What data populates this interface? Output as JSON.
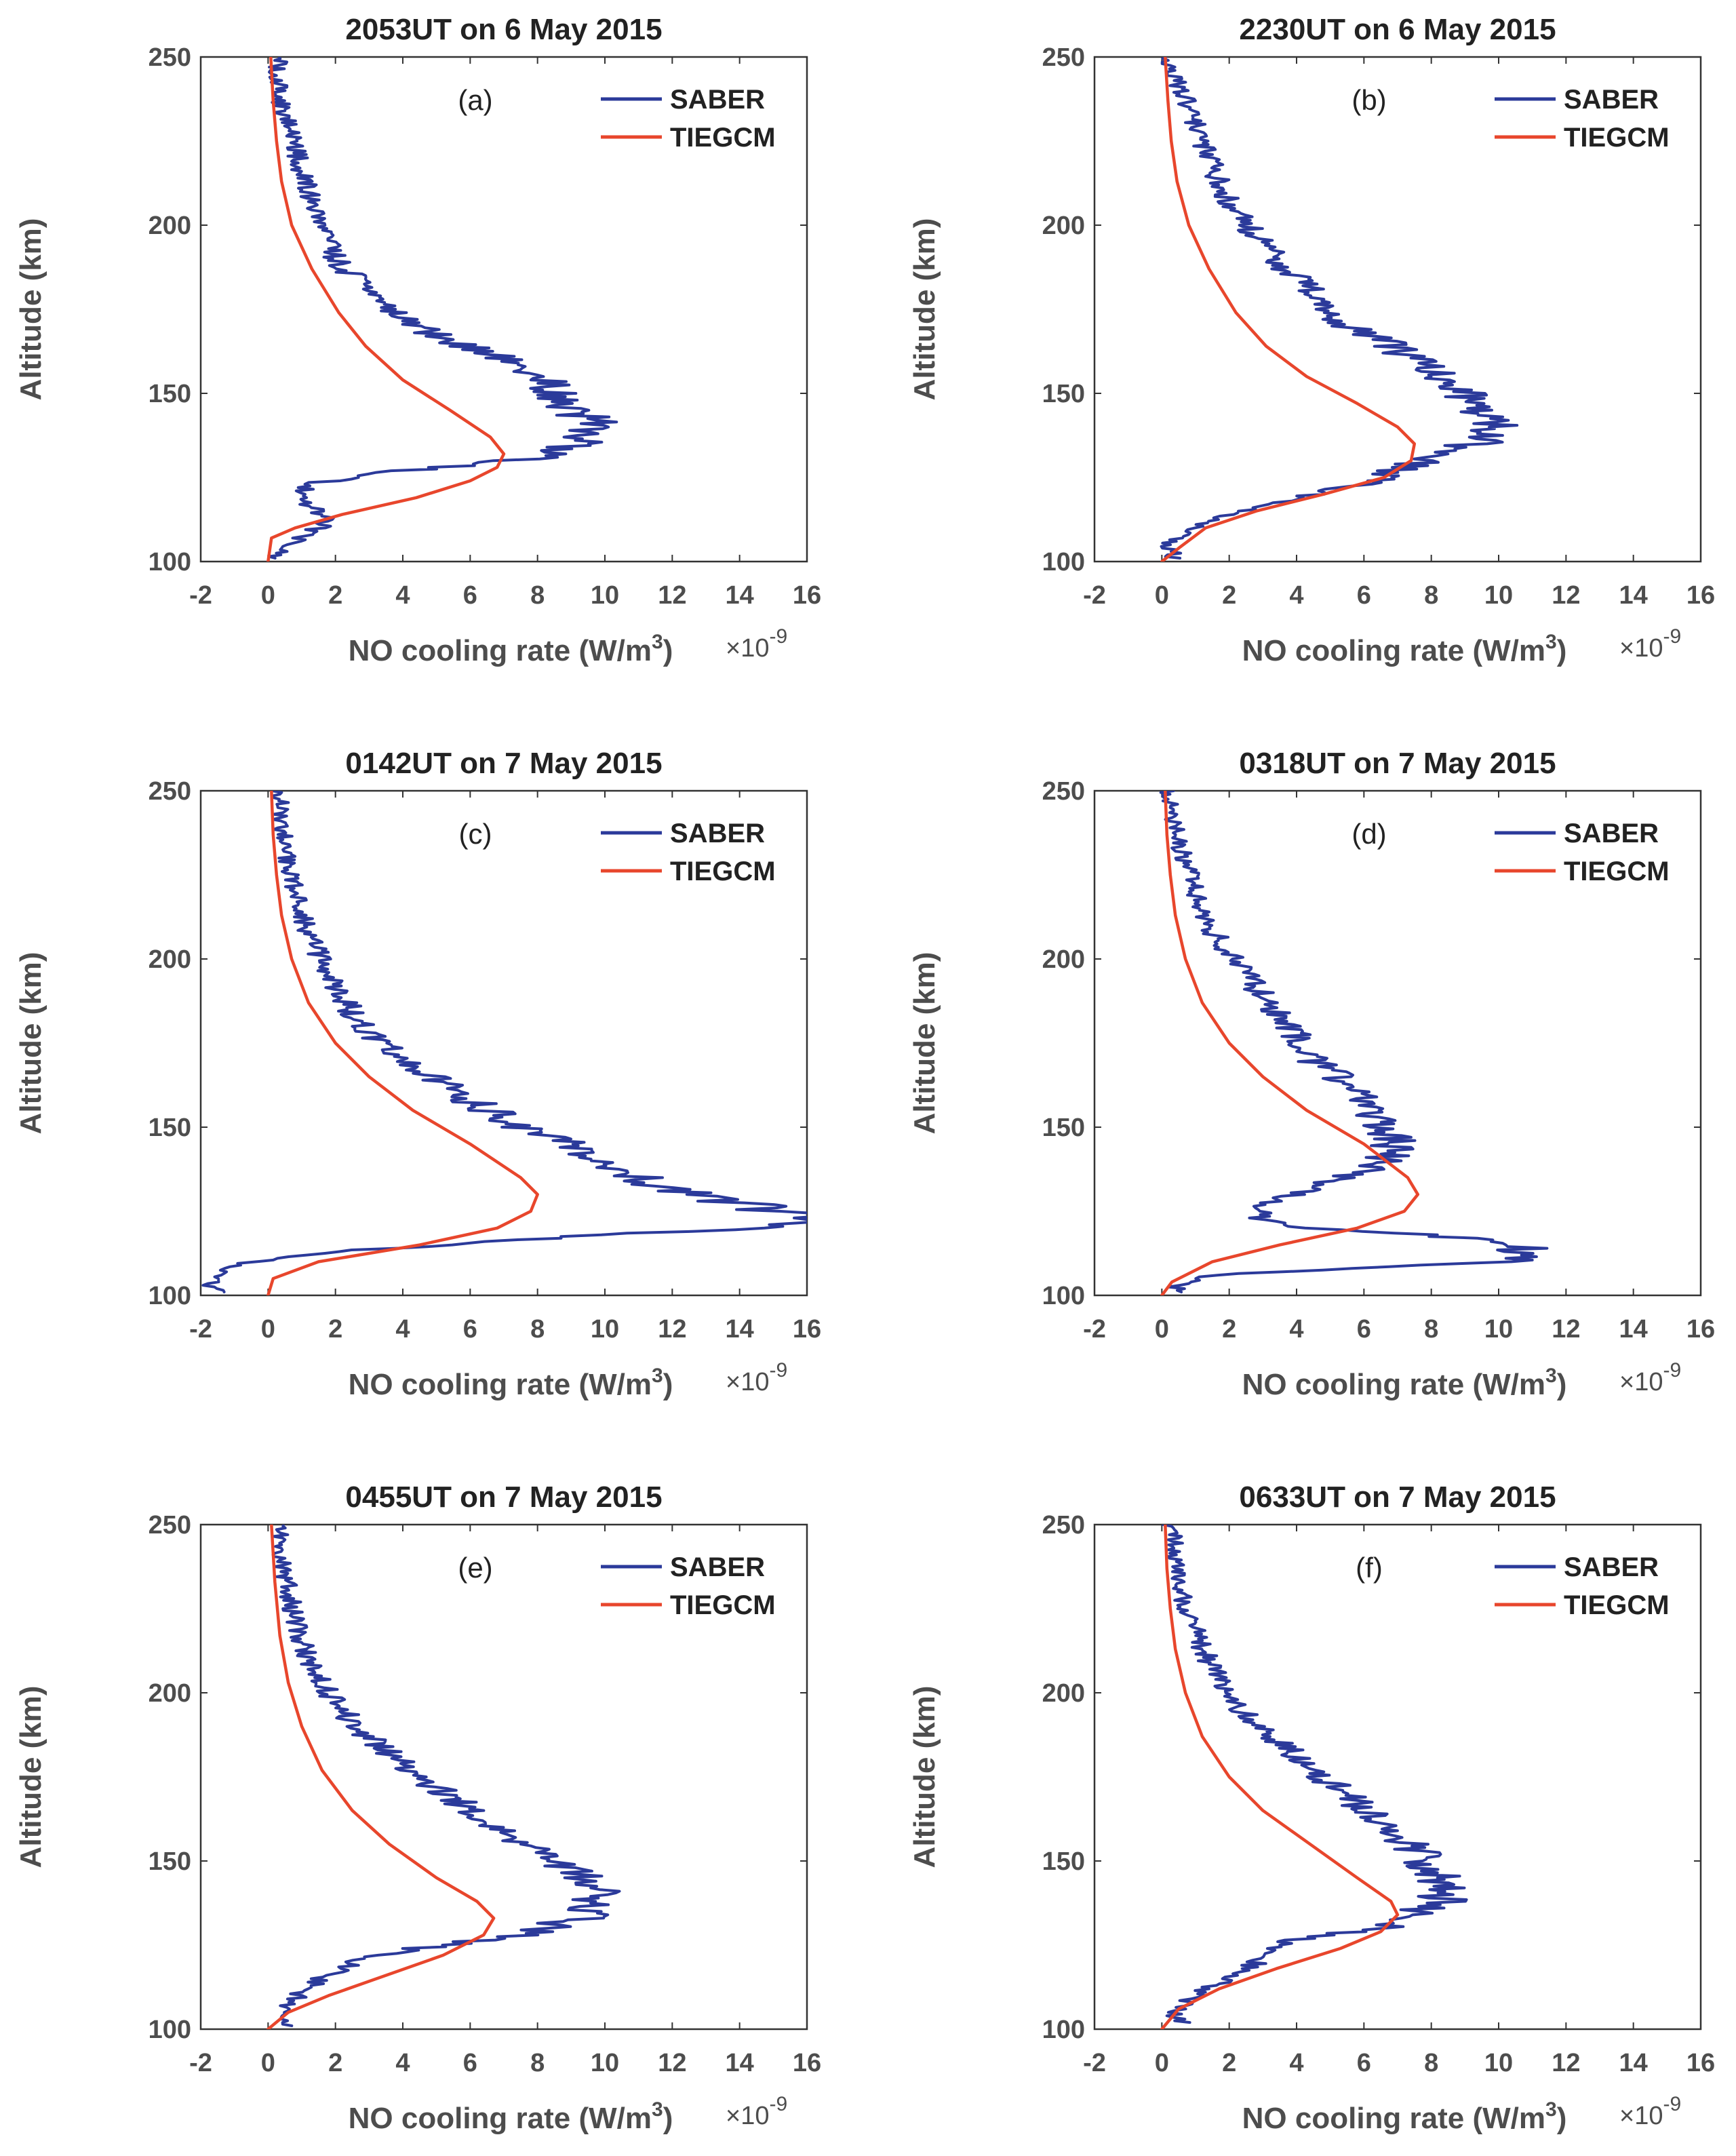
{
  "chart_data": [
    {
      "type": "line",
      "title": "2053UT on 6 May 2015",
      "panel_label": "(a)",
      "xlabel": "NO cooling rate (W/m",
      "xlabel_sup": "3",
      "xlabel_end": ")",
      "ylabel": "Altitude (km)",
      "x_multiplier_base": "×10",
      "x_multiplier_exp": "-9",
      "xlim": [
        -2,
        16
      ],
      "ylim": [
        100,
        250
      ],
      "xticks": [
        -2,
        0,
        2,
        4,
        6,
        8,
        10,
        12,
        14,
        16
      ],
      "yticks": [
        100,
        150,
        200,
        250
      ],
      "legend": [
        "SABER",
        "TIEGCM"
      ],
      "series": [
        {
          "name": "SABER",
          "color": "#2b3a9a",
          "x": [
            0.1,
            0.4,
            1.0,
            1.8,
            1.2,
            1.0,
            1.2,
            3.0,
            5.0,
            8.5,
            9.2,
            9.8,
            9.0,
            8.7,
            7.9,
            7.0,
            5.6,
            4.3,
            3.0,
            2.0,
            1.6,
            1.2,
            0.9,
            0.6,
            0.4,
            0.3,
            0.3
          ],
          "y": [
            101,
            103,
            107,
            112,
            117,
            120,
            123,
            126,
            128,
            131,
            135,
            140,
            145,
            150,
            155,
            160,
            165,
            170,
            180,
            190,
            200,
            210,
            220,
            230,
            235,
            240,
            250
          ]
        },
        {
          "name": "TIEGCM",
          "color": "#e8462c",
          "x": [
            0.0,
            0.1,
            0.8,
            2.2,
            4.4,
            6.0,
            6.8,
            7.0,
            6.6,
            5.4,
            4.0,
            2.9,
            2.1,
            1.3,
            0.7,
            0.4,
            0.25,
            0.15,
            0.08
          ],
          "y": [
            100,
            107,
            110,
            114,
            119,
            124,
            128,
            132,
            137,
            145,
            154,
            164,
            174,
            187,
            200,
            213,
            225,
            237,
            250
          ]
        }
      ]
    },
    {
      "type": "line",
      "title": "2230UT on 6 May 2015",
      "panel_label": "(b)",
      "xlabel": "NO cooling rate (W/m",
      "xlabel_sup": "3",
      "xlabel_end": ")",
      "ylabel": "Altitude (km)",
      "x_multiplier_base": "×10",
      "x_multiplier_exp": "-9",
      "xlim": [
        -2,
        16
      ],
      "ylim": [
        100,
        250
      ],
      "xticks": [
        -2,
        0,
        2,
        4,
        6,
        8,
        10,
        12,
        14,
        16
      ],
      "yticks": [
        100,
        150,
        200,
        250
      ],
      "legend": [
        "SABER",
        "TIEGCM"
      ],
      "series": [
        {
          "name": "SABER",
          "color": "#2b3a9a",
          "x": [
            0.4,
            0.2,
            0.8,
            2.0,
            3.5,
            5.0,
            6.5,
            7.8,
            9.3,
            9.8,
            9.5,
            8.9,
            8.2,
            7.6,
            6.6,
            5.5,
            4.4,
            3.4,
            2.5,
            1.8,
            1.4,
            1.0,
            0.6,
            0.3,
            0.2
          ],
          "y": [
            101,
            105,
            110,
            114,
            118,
            121,
            125,
            130,
            135,
            140,
            145,
            150,
            155,
            160,
            165,
            170,
            180,
            190,
            200,
            210,
            220,
            230,
            240,
            245,
            250
          ]
        },
        {
          "name": "TIEGCM",
          "color": "#e8462c",
          "x": [
            0.0,
            0.5,
            1.3,
            2.8,
            4.8,
            6.6,
            7.4,
            7.5,
            7.0,
            5.8,
            4.3,
            3.1,
            2.2,
            1.4,
            0.8,
            0.45,
            0.28,
            0.18,
            0.1
          ],
          "y": [
            100,
            104,
            110,
            115,
            120,
            125,
            130,
            135,
            140,
            147,
            155,
            164,
            174,
            187,
            200,
            213,
            225,
            237,
            250
          ]
        }
      ]
    },
    {
      "type": "line",
      "title": "0142UT on 7 May 2015",
      "panel_label": "(c)",
      "xlabel": "NO cooling rate (W/m",
      "xlabel_sup": "3",
      "xlabel_end": ")",
      "ylabel": "Altitude (km)",
      "x_multiplier_base": "×10",
      "x_multiplier_exp": "-9",
      "xlim": [
        -2,
        16
      ],
      "ylim": [
        100,
        250
      ],
      "xticks": [
        -2,
        0,
        2,
        4,
        6,
        8,
        10,
        12,
        14,
        16
      ],
      "yticks": [
        100,
        150,
        200,
        250
      ],
      "legend": [
        "SABER",
        "TIEGCM"
      ],
      "series": [
        {
          "name": "SABER",
          "color": "#2b3a9a",
          "x": [
            -1.5,
            -1.8,
            -0.5,
            2.0,
            8.0,
            12.0,
            15.5,
            16.0,
            14.5,
            12.0,
            10.5,
            9.0,
            7.5,
            6.0,
            4.8,
            3.7,
            2.8,
            2.1,
            1.6,
            1.1,
            0.8,
            0.6,
            0.4,
            0.3
          ],
          "y": [
            101,
            105,
            110,
            113,
            117,
            119,
            121,
            122,
            126,
            132,
            138,
            145,
            150,
            158,
            165,
            172,
            180,
            190,
            200,
            210,
            220,
            230,
            240,
            250
          ]
        },
        {
          "name": "TIEGCM",
          "color": "#e8462c",
          "x": [
            0.0,
            0.15,
            1.5,
            4.5,
            6.8,
            7.8,
            8.0,
            7.5,
            6.0,
            4.3,
            3.0,
            2.0,
            1.2,
            0.7,
            0.4,
            0.25,
            0.15,
            0.1
          ],
          "y": [
            100,
            105,
            110,
            115,
            120,
            125,
            130,
            135,
            145,
            155,
            165,
            175,
            187,
            200,
            213,
            225,
            237,
            250
          ]
        }
      ]
    },
    {
      "type": "line",
      "title": "0318UT on 7 May 2015",
      "panel_label": "(d)",
      "xlabel": "NO cooling rate (W/m",
      "xlabel_sup": "3",
      "xlabel_end": ")",
      "ylabel": "Altitude (km)",
      "x_multiplier_base": "×10",
      "x_multiplier_exp": "-9",
      "xlim": [
        -2,
        16
      ],
      "ylim": [
        100,
        250
      ],
      "xticks": [
        -2,
        0,
        2,
        4,
        6,
        8,
        10,
        12,
        14,
        16
      ],
      "yticks": [
        100,
        150,
        200,
        250
      ],
      "legend": [
        "SABER",
        "TIEGCM"
      ],
      "series": [
        {
          "name": "SABER",
          "color": "#2b3a9a",
          "x": [
            0.4,
            0.4,
            1.5,
            6.0,
            10.0,
            11.0,
            9.5,
            5.5,
            3.0,
            2.8,
            4.5,
            6.0,
            6.8,
            6.9,
            6.5,
            6.2,
            5.5,
            4.5,
            3.8,
            2.9,
            2.1,
            1.4,
            1.0,
            0.5,
            0.1
          ],
          "y": [
            101,
            103,
            106,
            108,
            110,
            113,
            117,
            119,
            122,
            127,
            132,
            137,
            142,
            147,
            150,
            155,
            163,
            170,
            180,
            190,
            200,
            210,
            220,
            235,
            250
          ]
        },
        {
          "name": "TIEGCM",
          "color": "#e8462c",
          "x": [
            0.0,
            0.3,
            1.5,
            3.5,
            5.8,
            7.2,
            7.6,
            7.3,
            6.0,
            4.3,
            3.0,
            2.0,
            1.2,
            0.7,
            0.4,
            0.25,
            0.15,
            0.1
          ],
          "y": [
            100,
            104,
            110,
            115,
            120,
            125,
            130,
            135,
            145,
            155,
            165,
            175,
            187,
            200,
            213,
            225,
            237,
            250
          ]
        }
      ]
    },
    {
      "type": "line",
      "title": "0455UT on 7 May 2015",
      "panel_label": "(e)",
      "xlabel": "NO cooling rate (W/m",
      "xlabel_sup": "3",
      "xlabel_end": ")",
      "ylabel": "Altitude (km)",
      "x_multiplier_base": "×10",
      "x_multiplier_exp": "-9",
      "xlim": [
        -2,
        16
      ],
      "ylim": [
        100,
        250
      ],
      "xticks": [
        -2,
        0,
        2,
        4,
        6,
        8,
        10,
        12,
        14,
        16
      ],
      "yticks": [
        100,
        150,
        200,
        250
      ],
      "legend": [
        "SABER",
        "TIEGCM"
      ],
      "series": [
        {
          "name": "SABER",
          "color": "#2b3a9a",
          "x": [
            0.5,
            0.4,
            0.9,
            1.6,
            2.5,
            4.5,
            7.5,
            9.2,
            9.7,
            9.6,
            8.7,
            8.0,
            6.9,
            5.7,
            4.6,
            3.6,
            2.6,
            1.8,
            1.2,
            0.8,
            0.5,
            0.3
          ],
          "y": [
            101,
            105,
            110,
            115,
            120,
            124,
            128,
            133,
            138,
            143,
            148,
            153,
            160,
            167,
            174,
            182,
            190,
            200,
            210,
            222,
            235,
            250
          ]
        },
        {
          "name": "TIEGCM",
          "color": "#e8462c",
          "x": [
            0.0,
            0.6,
            1.8,
            3.5,
            5.2,
            6.4,
            6.7,
            6.2,
            5.0,
            3.6,
            2.5,
            1.6,
            1.0,
            0.6,
            0.35,
            0.2,
            0.1
          ],
          "y": [
            100,
            105,
            110,
            116,
            122,
            128,
            133,
            138,
            145,
            155,
            165,
            177,
            190,
            203,
            217,
            233,
            250
          ]
        }
      ]
    },
    {
      "type": "line",
      "title": "0633UT on 7 May 2015",
      "panel_label": "(f)",
      "xlabel": "NO cooling rate (W/m",
      "xlabel_sup": "3",
      "xlabel_end": ")",
      "ylabel": "Altitude (km)",
      "x_multiplier_base": "×10",
      "x_multiplier_exp": "-9",
      "xlim": [
        -2,
        16
      ],
      "ylim": [
        100,
        250
      ],
      "xticks": [
        -2,
        0,
        2,
        4,
        6,
        8,
        10,
        12,
        14,
        16
      ],
      "yticks": [
        100,
        150,
        200,
        250
      ],
      "legend": [
        "SABER",
        "TIEGCM"
      ],
      "series": [
        {
          "name": "SABER",
          "color": "#2b3a9a",
          "x": [
            0.6,
            0.3,
            1.0,
            2.0,
            2.9,
            3.6,
            5.0,
            6.5,
            7.5,
            8.3,
            8.4,
            8.0,
            7.6,
            6.8,
            5.8,
            4.8,
            3.5,
            2.4,
            1.6,
            1.0,
            0.5,
            0.3
          ],
          "y": [
            102,
            105,
            110,
            115,
            120,
            126,
            128,
            130,
            134,
            138,
            143,
            148,
            153,
            160,
            167,
            175,
            185,
            195,
            205,
            218,
            232,
            250
          ]
        },
        {
          "name": "TIEGCM",
          "color": "#e8462c",
          "x": [
            0.0,
            0.5,
            1.7,
            3.4,
            5.3,
            6.5,
            7.0,
            6.8,
            5.8,
            4.4,
            3.0,
            2.0,
            1.2,
            0.7,
            0.4,
            0.25,
            0.15,
            0.1
          ],
          "y": [
            100,
            106,
            112,
            118,
            124,
            129,
            134,
            138,
            145,
            155,
            165,
            175,
            187,
            200,
            213,
            225,
            237,
            250
          ]
        }
      ]
    }
  ]
}
